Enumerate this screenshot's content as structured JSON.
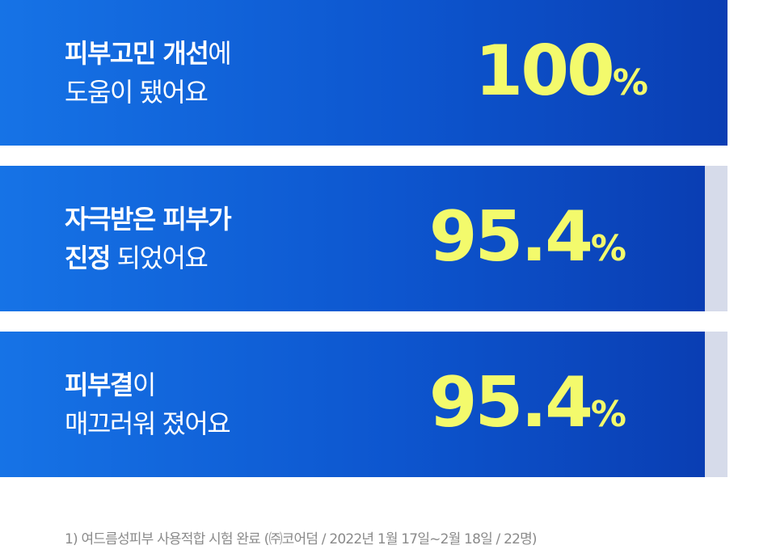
{
  "items": [
    {
      "lines": [
        [
          {
            "text": "피부고민 개선",
            "bold": true
          },
          {
            "text": "에",
            "bold": false
          }
        ],
        [
          {
            "text": "도움이 됐어요",
            "bold": false
          }
        ]
      ],
      "value": 100,
      "unit": "%"
    },
    {
      "lines": [
        [
          {
            "text": "자극받은 피부가",
            "bold": true
          }
        ],
        [
          {
            "text": "진정",
            "bold": true
          },
          {
            "text": " 되었어요",
            "bold": false
          }
        ]
      ],
      "value": 95.4,
      "unit": "%"
    },
    {
      "lines": [
        [
          {
            "text": "피부결",
            "bold": true
          },
          {
            "text": "이",
            "bold": false
          }
        ],
        [
          {
            "text": "매끄러워 졌어요",
            "bold": false
          }
        ]
      ],
      "value": 95.4,
      "unit": "%"
    }
  ],
  "footnote": "1) 여드름성피부 사용적합 시험 완료 (㈜코어덤 / 2022년 1월 17일~2월 18일 / 22명)"
}
